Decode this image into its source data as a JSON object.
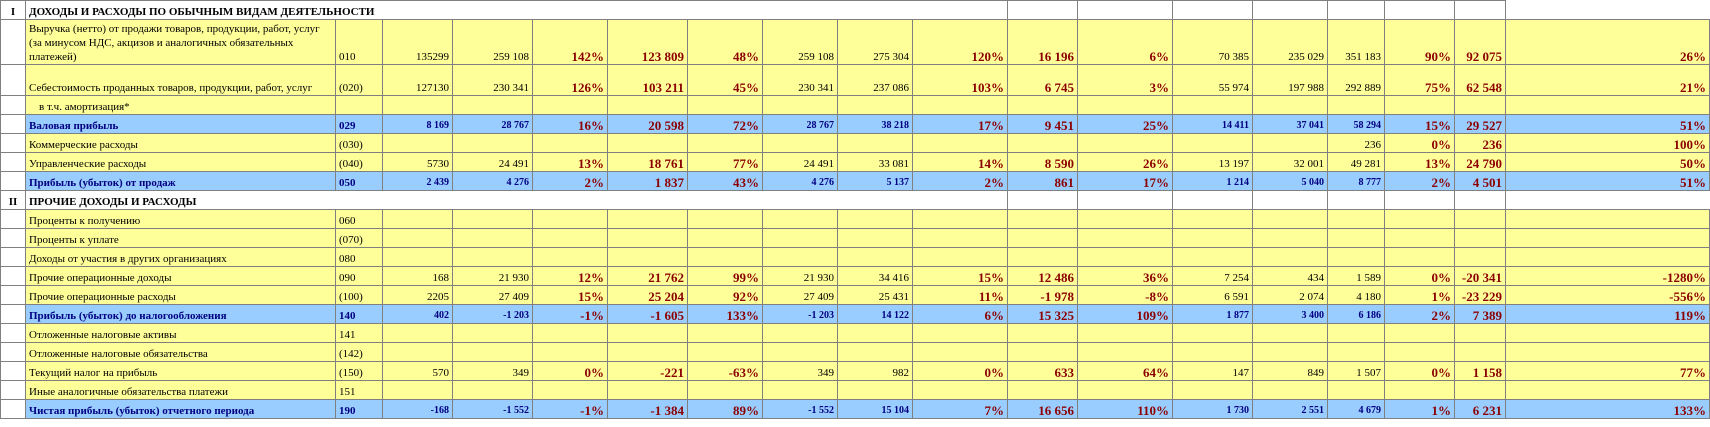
{
  "section1": {
    "num": "I",
    "title": "ДОХОДЫ И РАСХОДЫ ПО ОБЫЧНЫМ ВИДАМ ДЕЯТЕЛЬНОСТИ"
  },
  "section2": {
    "num": "II",
    "title": "ПРОЧИЕ ДОХОДЫ И РАСХОДЫ"
  },
  "rows1": [
    {
      "label": "Выручка (нетто) от продажи товаров, продукции, работ, услуг (за минусом НДС, акцизов и аналогичных обязательных платежей)",
      "code": "010",
      "cells": [
        "135299",
        "259 108",
        "142%",
        "123 809",
        "48%",
        "259 108",
        "275 304",
        "120%",
        "16 196",
        "6%",
        "70 385",
        "235 029",
        "351 183",
        "90%",
        "92 075",
        "26%"
      ],
      "kind": "tall"
    },
    {
      "label": "Себестоимость проданных товаров, продукции, работ, услуг",
      "code": "(020)",
      "cells": [
        "127130",
        "230 341",
        "126%",
        "103 211",
        "45%",
        "230 341",
        "237 086",
        "103%",
        "6 745",
        "3%",
        "55 974",
        "197 988",
        "292 889",
        "75%",
        "62 548",
        "21%"
      ],
      "kind": "tall2"
    },
    {
      "label": "в т.ч. амортизация*",
      "code": "",
      "cells": [
        "",
        "",
        "",
        "",
        "",
        "",
        "",
        "",
        "",
        "",
        "",
        "",
        "",
        "",
        "",
        ""
      ],
      "kind": "indent"
    },
    {
      "label": "Валовая прибыль",
      "code": "029",
      "cells": [
        "8 169",
        "28 767",
        "16%",
        "20 598",
        "72%",
        "28 767",
        "38 218",
        "17%",
        "9 451",
        "25%",
        "14 411",
        "37 041",
        "58 294",
        "15%",
        "29 527",
        "51%"
      ],
      "kind": "hl"
    },
    {
      "label": "Коммерческие расходы",
      "code": "(030)",
      "cells": [
        "",
        "",
        "",
        "",
        "",
        "",
        "",
        "",
        "",
        "",
        "",
        "",
        "236",
        "0%",
        "236",
        "100%"
      ],
      "kind": "normal"
    },
    {
      "label": "Управленческие расходы",
      "code": "(040)",
      "cells": [
        "5730",
        "24 491",
        "13%",
        "18 761",
        "77%",
        "24 491",
        "33 081",
        "14%",
        "8 590",
        "26%",
        "13 197",
        "32 001",
        "49 281",
        "13%",
        "24 790",
        "50%"
      ],
      "kind": "normal"
    },
    {
      "label": "Прибыль (убыток) от продаж",
      "code": "050",
      "cells": [
        "2 439",
        "4 276",
        "2%",
        "1 837",
        "43%",
        "4 276",
        "5 137",
        "2%",
        "861",
        "17%",
        "1 214",
        "5 040",
        "8 777",
        "2%",
        "4 501",
        "51%"
      ],
      "kind": "hl"
    }
  ],
  "rows2": [
    {
      "label": "Проценты к получению",
      "code": "060",
      "cells": [
        "",
        "",
        "",
        "",
        "",
        "",
        "",
        "",
        "",
        "",
        "",
        "",
        "",
        "",
        "",
        ""
      ],
      "kind": "normal"
    },
    {
      "label": "Проценты к уплате",
      "code": "(070)",
      "cells": [
        "",
        "",
        "",
        "",
        "",
        "",
        "",
        "",
        "",
        "",
        "",
        "",
        "",
        "",
        "",
        ""
      ],
      "kind": "normal"
    },
    {
      "label": "Доходы от участия в других организациях",
      "code": "080",
      "cells": [
        "",
        "",
        "",
        "",
        "",
        "",
        "",
        "",
        "",
        "",
        "",
        "",
        "",
        "",
        "",
        ""
      ],
      "kind": "normal"
    },
    {
      "label": "Прочие операционные доходы",
      "code": "090",
      "cells": [
        "168",
        "21 930",
        "12%",
        "21 762",
        "99%",
        "21 930",
        "34 416",
        "15%",
        "12 486",
        "36%",
        "7 254",
        "434",
        "1 589",
        "0%",
        "-20 341",
        "-1280%"
      ],
      "kind": "normal"
    },
    {
      "label": "Прочие операционные расходы",
      "code": "(100)",
      "cells": [
        "2205",
        "27 409",
        "15%",
        "25 204",
        "92%",
        "27 409",
        "25 431",
        "11%",
        "-1 978",
        "-8%",
        "6 591",
        "2 074",
        "4 180",
        "1%",
        "-23 229",
        "-556%"
      ],
      "kind": "normal"
    },
    {
      "label": "Прибыль (убыток) до налогообложения",
      "code": "140",
      "cells": [
        "402",
        "-1 203",
        "-1%",
        "-1 605",
        "133%",
        "-1 203",
        "14 122",
        "6%",
        "15 325",
        "109%",
        "1 877",
        "3 400",
        "6 186",
        "2%",
        "7 389",
        "119%"
      ],
      "kind": "hl"
    },
    {
      "label": "Отложенные налоговые активы",
      "code": "141",
      "cells": [
        "",
        "",
        "",
        "",
        "",
        "",
        "",
        "",
        "",
        "",
        "",
        "",
        "",
        "",
        "",
        ""
      ],
      "kind": "normal"
    },
    {
      "label": "Отложенные налоговые обязательства",
      "code": "(142)",
      "cells": [
        "",
        "",
        "",
        "",
        "",
        "",
        "",
        "",
        "",
        "",
        "",
        "",
        "",
        "",
        "",
        ""
      ],
      "kind": "normal"
    },
    {
      "label": "Текущий налог на прибыль",
      "code": "(150)",
      "cells": [
        "570",
        "349",
        "0%",
        "-221",
        "-63%",
        "349",
        "982",
        "0%",
        "633",
        "64%",
        "147",
        "849",
        "1 507",
        "0%",
        "1 158",
        "77%"
      ],
      "kind": "normal"
    },
    {
      "label": "Иные аналогичные обязательства платежи",
      "code": "151",
      "cells": [
        "",
        "",
        "",
        "",
        "",
        "",
        "",
        "",
        "",
        "",
        "",
        "",
        "",
        "",
        "",
        ""
      ],
      "kind": "normal"
    },
    {
      "label": "Чистая прибыль (убыток) отчетного периода",
      "code": "190",
      "cells": [
        "-168",
        "-1 552",
        "-1%",
        "-1 384",
        "89%",
        "-1 552",
        "15 104",
        "7%",
        "16 656",
        "110%",
        "1 730",
        "2 551",
        "4 679",
        "1%",
        "6 231",
        "133%"
      ],
      "kind": "hl"
    }
  ]
}
